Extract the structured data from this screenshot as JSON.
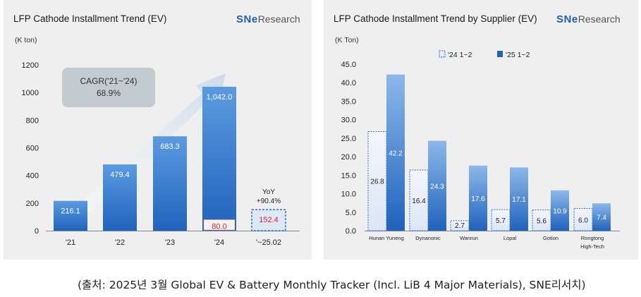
{
  "source_text": "(출처: 2025년 3월 Global EV & Battery Monthly Tracker (Incl. LiB 4 Major Materials), SNE리서치)",
  "logo": {
    "sne": "SNe",
    "rest": "Research"
  },
  "chart_data": [
    {
      "type": "bar",
      "title": "LFP Cathode Installment Trend (EV)",
      "ylabel": "(K ton)",
      "ylim": [
        0,
        1200
      ],
      "yticks": [
        "0",
        "200",
        "400",
        "600",
        "800",
        "1000",
        "1200"
      ],
      "categories": [
        "'21",
        "'22",
        "'23",
        "'24",
        "'~25.02"
      ],
      "values": [
        216.1,
        479.4,
        683.3,
        1042.0,
        152.4
      ],
      "labels": [
        "216.1",
        "479.4",
        "683.3",
        "1,042.0",
        "152.4"
      ],
      "highlight": {
        "category": "'24",
        "value": 80.0,
        "label": "80.0"
      },
      "cagr_label": [
        "CAGR('21~'24)",
        "68.9%"
      ],
      "yoy_label": [
        "YoY",
        "+90.4%"
      ],
      "colors": {
        "bar": "#1f63bd",
        "bar_light": "#5b9be0",
        "highlight_text": "#e0222e"
      }
    },
    {
      "type": "bar",
      "title": "LFP Cathode Installment Trend by Supplier (EV)",
      "ylabel": "(K Ton)",
      "ylim": [
        0,
        45
      ],
      "yticks": [
        "0.0",
        "5.0",
        "10.0",
        "15.0",
        "20.0",
        "25.0",
        "30.0",
        "35.0",
        "40.0",
        "45.0"
      ],
      "categories": [
        "Hunan Yuneng",
        "Dynanonic",
        "Wanrun",
        "Lopal",
        "Gotion",
        "Rongtong"
      ],
      "category_sublabels": [
        "",
        "",
        "",
        "",
        "",
        "High-Tech"
      ],
      "legend": [
        "'24 1~2",
        "'25 1~2"
      ],
      "series": [
        {
          "name": "'24 1~2",
          "values": [
            26.8,
            16.4,
            2.7,
            5.7,
            5.6,
            6.0
          ],
          "labels": [
            "26.8",
            "16.4",
            "2.7",
            "5.7",
            "5.6",
            "6.0"
          ]
        },
        {
          "name": "'25 1~2",
          "values": [
            42.2,
            24.3,
            17.6,
            17.1,
            10.9,
            7.4
          ],
          "labels": [
            "42.2",
            "24.3",
            "17.6",
            "17.1",
            "10.9",
            "7.4"
          ]
        }
      ]
    }
  ]
}
